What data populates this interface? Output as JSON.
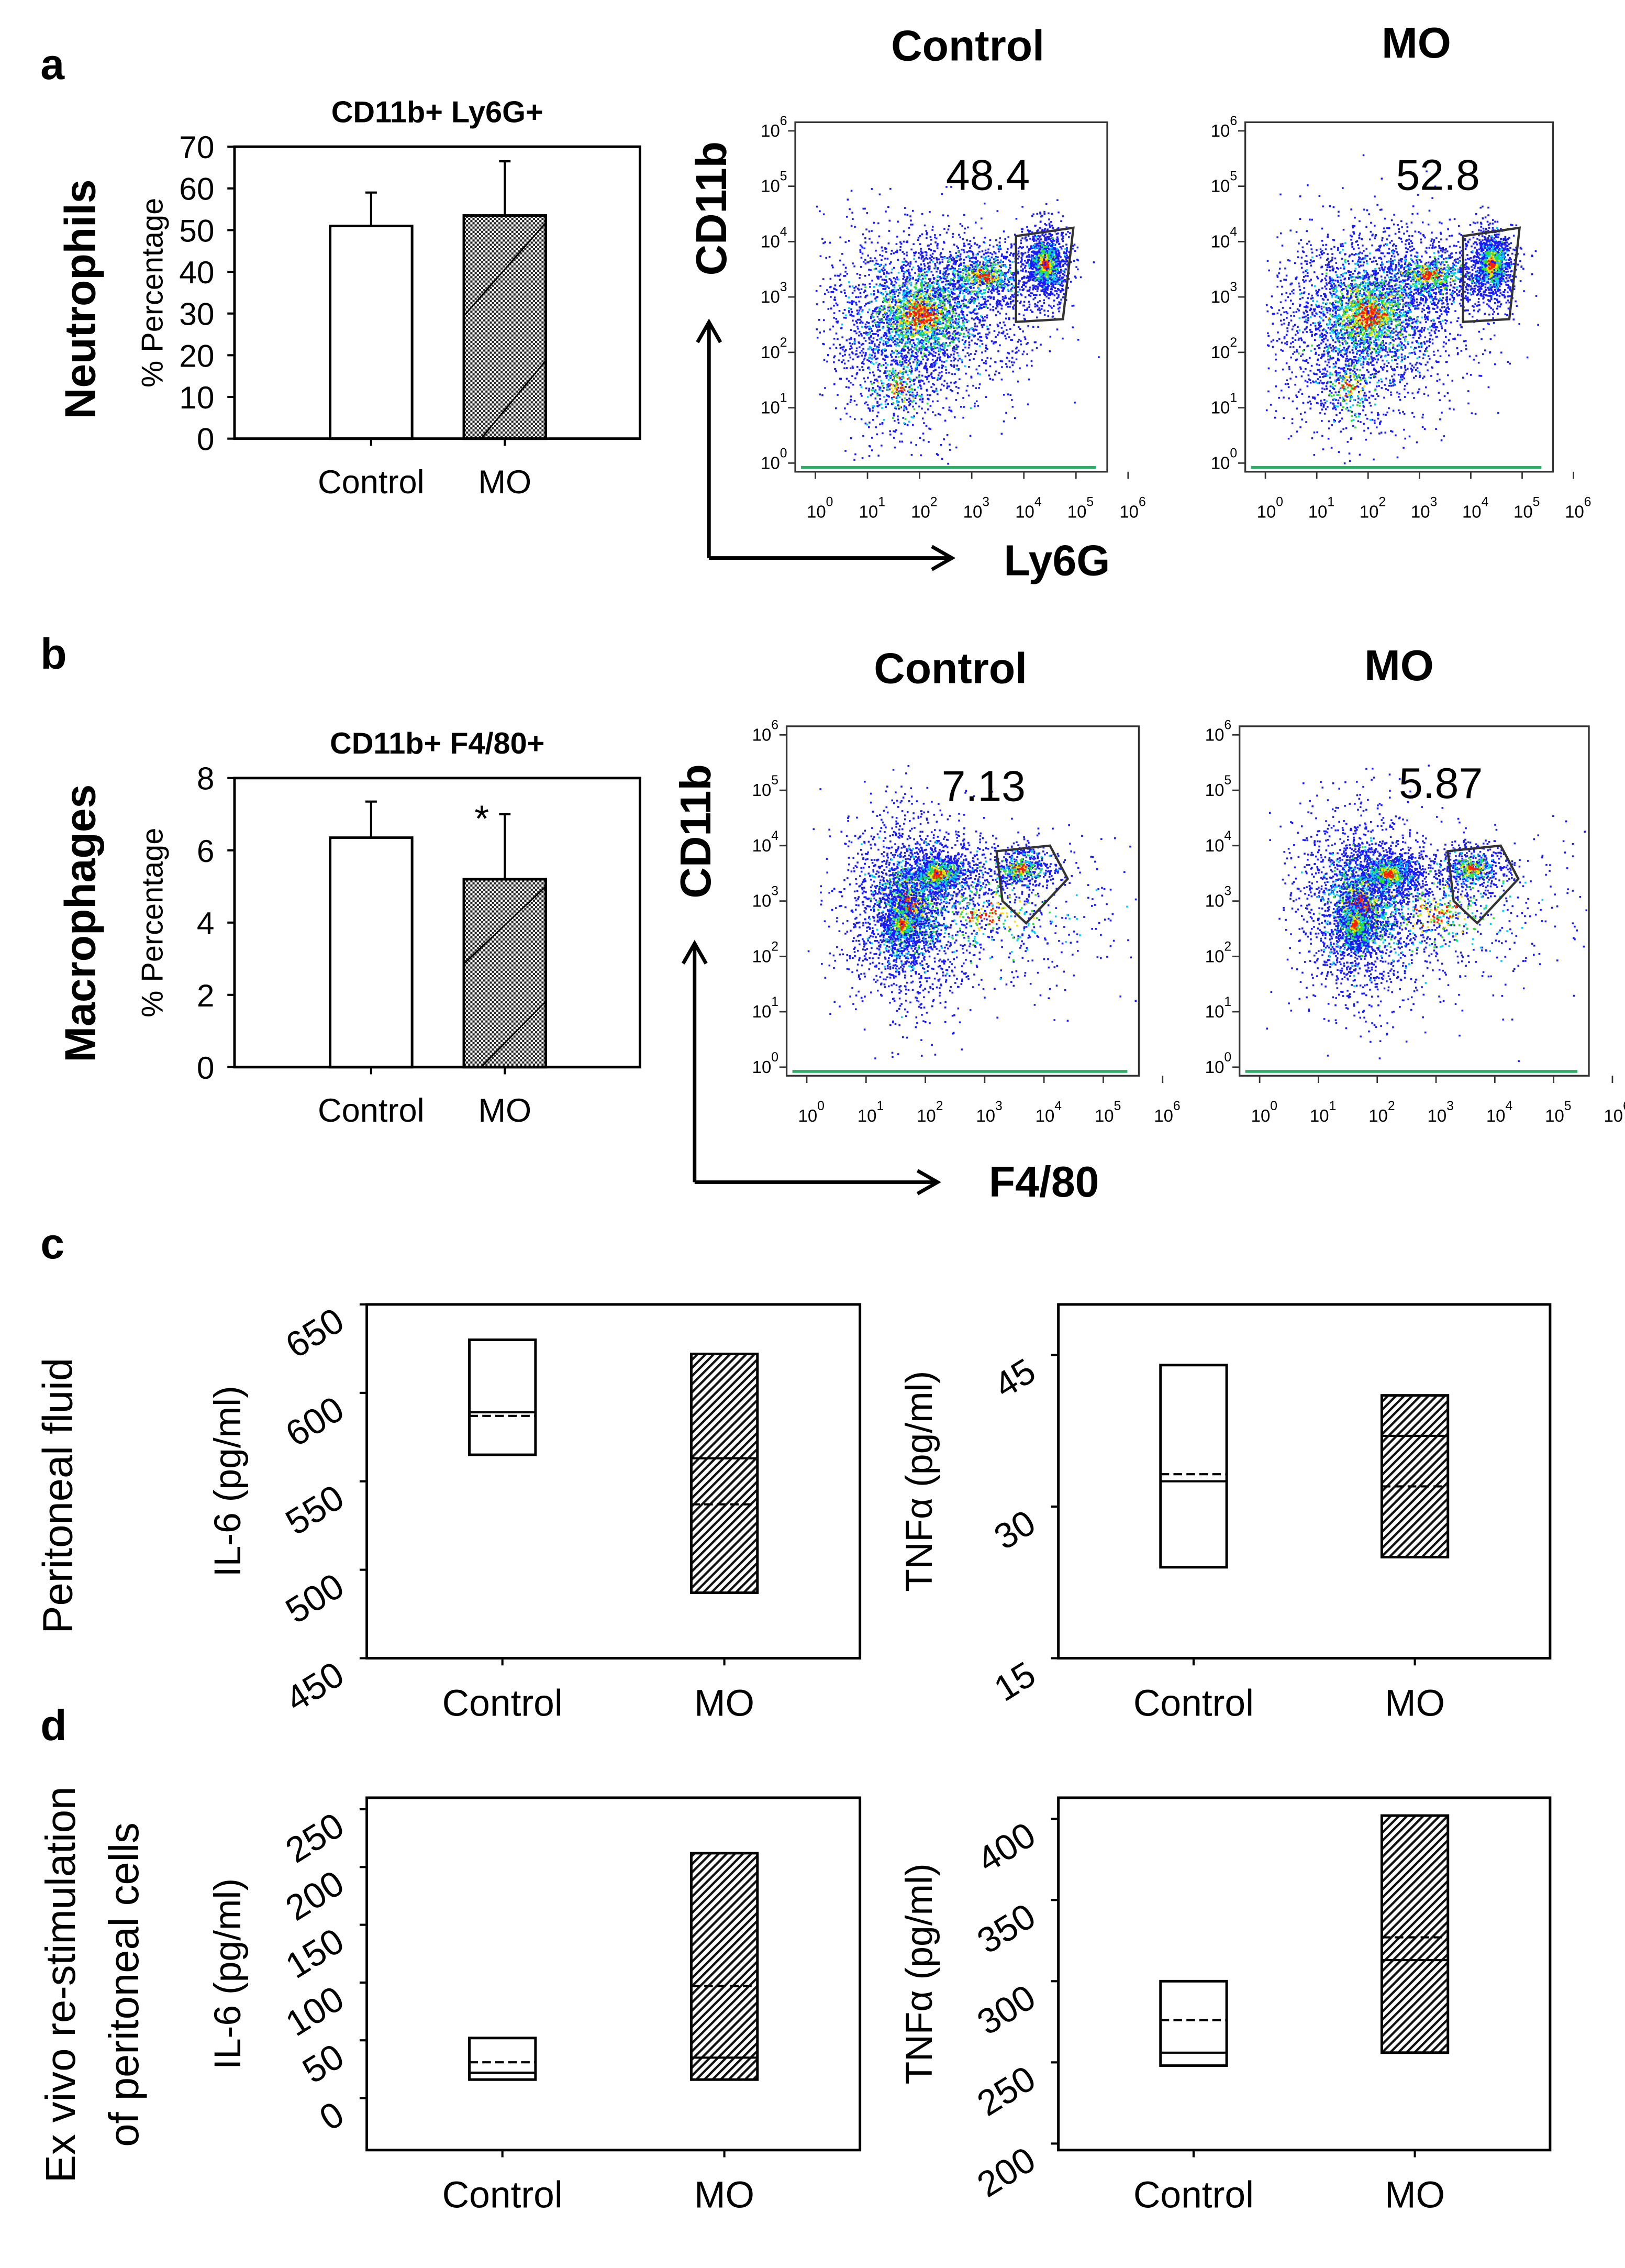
{
  "panels": {
    "a": {
      "letter": "a",
      "row_label": "Neutrophils",
      "col_control": "Control",
      "col_mo": "MO"
    },
    "b": {
      "letter": "b",
      "row_label": "Macrophages",
      "col_control": "Control",
      "col_mo": "MO"
    },
    "c": {
      "letter": "c",
      "row_label": "Peritoneal fluid"
    },
    "d": {
      "letter": "d",
      "row_label_1": "Ex vivo re-stimulation",
      "row_label_2": "of peritoneal cells"
    }
  },
  "flow_axes": {
    "a": {
      "y": "CD11b",
      "x": "Ly6G"
    },
    "b": {
      "y": "CD11b",
      "x": "F4/80"
    },
    "ticks": [
      "0",
      "1",
      "2",
      "3",
      "4",
      "5",
      "6"
    ],
    "tick_base": "10"
  },
  "colors": {
    "blue": "#1a1aff",
    "cyan": "#00d0ff",
    "green": "#30e030",
    "yellow": "#ffe000",
    "red": "#ff2000",
    "hatch": "#000000"
  },
  "chart_data": [
    {
      "id": "a_bar",
      "type": "bar",
      "title": "CD11b+ Ly6G+",
      "ylabel": "% Percentage",
      "xlabel": "",
      "categories": [
        "Control",
        "MO"
      ],
      "values": [
        51,
        53.5
      ],
      "error_upper": [
        59,
        66.5
      ],
      "ylim": [
        0,
        70
      ],
      "yticks": [
        "0",
        "10",
        "20",
        "30",
        "40",
        "50",
        "60",
        "70"
      ],
      "annotations": [
        "",
        ""
      ]
    },
    {
      "id": "a_flow_control",
      "type": "scatter",
      "title": "Control",
      "gate_value": "48.4",
      "xlabel": "Ly6G",
      "ylabel": "CD11b",
      "scale": "log",
      "xlim": [
        1,
        1000000
      ],
      "ylim": [
        1,
        1000000
      ]
    },
    {
      "id": "a_flow_mo",
      "type": "scatter",
      "title": "MO",
      "gate_value": "52.8",
      "xlabel": "Ly6G",
      "ylabel": "CD11b",
      "scale": "log",
      "xlim": [
        1,
        1000000
      ],
      "ylim": [
        1,
        1000000
      ]
    },
    {
      "id": "b_bar",
      "type": "bar",
      "title": "CD11b+ F4/80+",
      "ylabel": "% Percentage",
      "xlabel": "",
      "categories": [
        "Control",
        "MO"
      ],
      "values": [
        6.35,
        5.2
      ],
      "error_upper": [
        7.35,
        7.0
      ],
      "ylim": [
        0,
        8
      ],
      "yticks": [
        "0",
        "2",
        "4",
        "6",
        "8"
      ],
      "annotations": [
        "",
        "*"
      ]
    },
    {
      "id": "b_flow_control",
      "type": "scatter",
      "title": "Control",
      "gate_value": "7.13",
      "xlabel": "F4/80",
      "ylabel": "CD11b",
      "scale": "log",
      "xlim": [
        1,
        1000000
      ],
      "ylim": [
        1,
        1000000
      ]
    },
    {
      "id": "b_flow_mo",
      "type": "scatter",
      "title": "MO",
      "gate_value": "5.87",
      "xlabel": "F4/80",
      "ylabel": "CD11b",
      "scale": "log",
      "xlim": [
        1,
        1000000
      ],
      "ylim": [
        1,
        1000000
      ]
    },
    {
      "id": "c_il6",
      "type": "box",
      "ylabel": "IL-6 (pg/ml)",
      "categories": [
        "Control",
        "MO"
      ],
      "ylim": [
        450,
        650
      ],
      "yticks": [
        450,
        500,
        550,
        600,
        650
      ],
      "boxes": [
        {
          "low": 565,
          "high": 630,
          "median": 589,
          "mean": 587
        },
        {
          "low": 487,
          "high": 622,
          "median": 563,
          "mean": 537
        }
      ]
    },
    {
      "id": "c_tnf",
      "type": "box",
      "ylabel": "TNFα (pg/ml)",
      "categories": [
        "Control",
        "MO"
      ],
      "ylim": [
        15,
        50
      ],
      "yticks": [
        15,
        30,
        45
      ],
      "boxes": [
        {
          "low": 24,
          "high": 44,
          "median": 32.5,
          "mean": 33.2
        },
        {
          "low": 25,
          "high": 41,
          "median": 37,
          "mean": 32
        }
      ]
    },
    {
      "id": "d_il6",
      "type": "box",
      "ylabel": "IL-6 (pg/ml)",
      "categories": [
        "Control",
        "MO"
      ],
      "ylim": [
        -45,
        260
      ],
      "yticks": [
        0,
        50,
        100,
        150,
        200,
        250
      ],
      "boxes": [
        {
          "low": 16,
          "high": 52,
          "median": 22,
          "mean": 31
        },
        {
          "low": 16,
          "high": 212,
          "median": 35,
          "mean": 97
        }
      ]
    },
    {
      "id": "d_tnf",
      "type": "box",
      "ylabel": "TNFα (pg/ml)",
      "categories": [
        "Control",
        "MO"
      ],
      "ylim": [
        196,
        413
      ],
      "yticks": [
        200,
        250,
        300,
        350,
        400
      ],
      "boxes": [
        {
          "low": 248,
          "high": 300,
          "median": 256,
          "mean": 276
        },
        {
          "low": 256,
          "high": 402,
          "median": 313,
          "mean": 327
        }
      ]
    }
  ]
}
